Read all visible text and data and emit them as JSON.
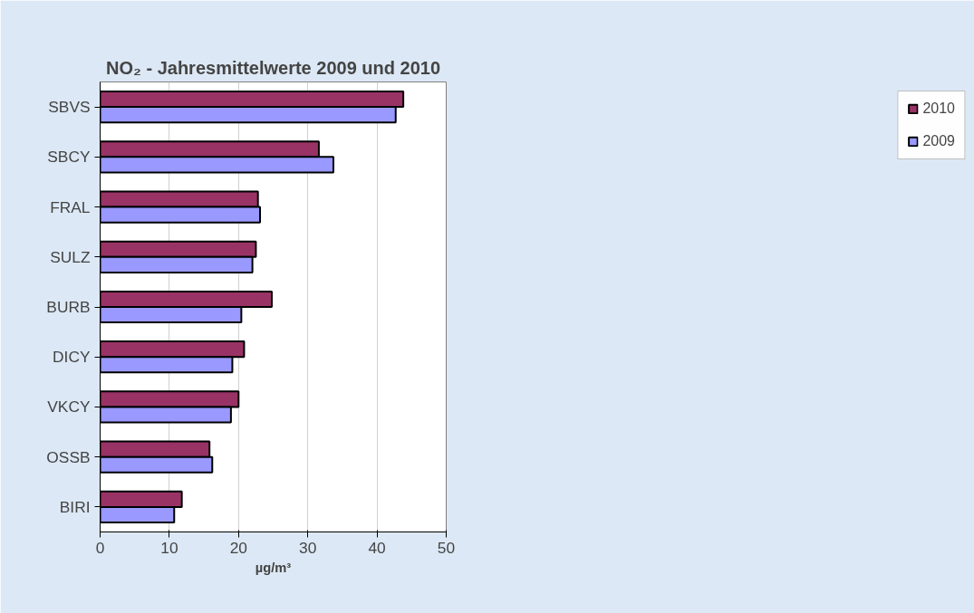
{
  "chart_data": {
    "type": "bar",
    "orientation": "horizontal",
    "title": "NO₂ - Jahresmittelwerte 2009 und 2010",
    "xlabel": "µg/m³",
    "categories": [
      "SBVS",
      "SBCY",
      "FRAL",
      "SULZ",
      "BURB",
      "DICY",
      "VKCY",
      "OSSB",
      "BIRI"
    ],
    "series": [
      {
        "name": "2010",
        "color": "#993366",
        "values": [
          43.8,
          31.6,
          22.8,
          22.5,
          24.8,
          20.8,
          20.0,
          15.8,
          11.8
        ]
      },
      {
        "name": "2009",
        "color": "#9999ff",
        "values": [
          42.7,
          33.7,
          23.1,
          22.0,
          20.4,
          19.1,
          18.9,
          16.2,
          10.7
        ]
      }
    ],
    "xlim": [
      0,
      50
    ],
    "xticks": [
      0,
      10,
      20,
      30,
      40,
      50
    ],
    "grid": "x",
    "legend": "right"
  }
}
